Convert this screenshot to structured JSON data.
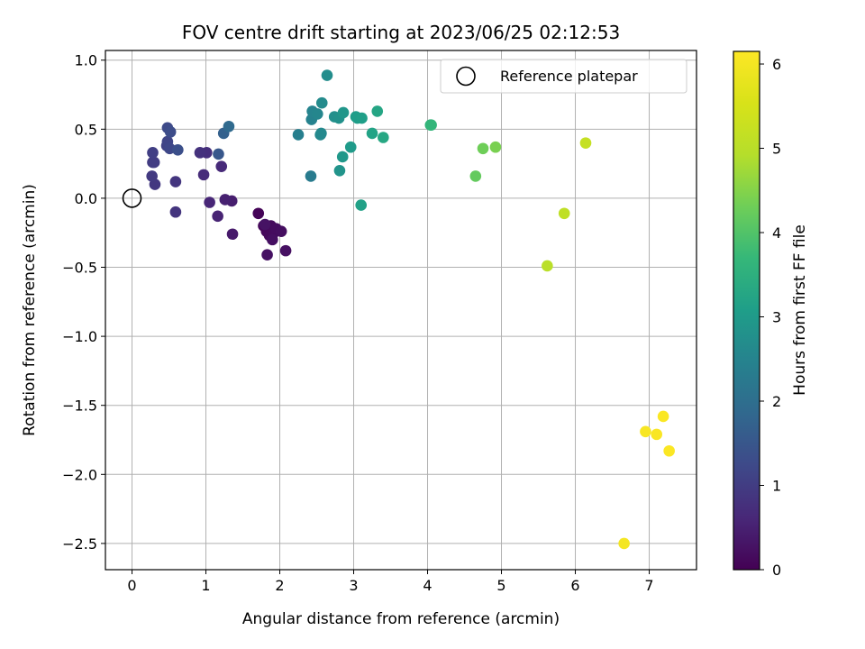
{
  "chart_data": {
    "type": "scatter",
    "title": "FOV centre drift starting at 2023/06/25 02:12:53",
    "xlabel": "Angular distance from reference (arcmin)",
    "ylabel": "Rotation from reference (arcmin)",
    "xlim": [
      -0.36,
      7.64
    ],
    "ylim": [
      -2.69,
      1.07
    ],
    "xticks": [
      0,
      1,
      2,
      3,
      4,
      5,
      6,
      7
    ],
    "xtick_labels": [
      "0",
      "1",
      "2",
      "3",
      "4",
      "5",
      "6",
      "7"
    ],
    "yticks": [
      1.0,
      0.5,
      0.0,
      -0.5,
      -1.0,
      -1.5,
      -2.0,
      -2.5
    ],
    "ytick_labels": [
      "1.0",
      "0.5",
      "0.0",
      "−0.5",
      "−1.0",
      "−1.5",
      "−2.0",
      "−2.5"
    ],
    "grid": true,
    "legend": {
      "placement": "top-right",
      "entries": [
        "Reference platepar"
      ]
    },
    "reference_point": {
      "x": 0.0,
      "y": 0.0
    },
    "colorbar": {
      "label": "Hours from first FF file",
      "range": [
        0,
        6.15
      ],
      "ticks": [
        0,
        1,
        2,
        3,
        4,
        5,
        6
      ],
      "tick_labels": [
        "0",
        "1",
        "2",
        "3",
        "4",
        "5",
        "6"
      ],
      "colormap": "viridis"
    },
    "points": [
      {
        "x": 1.71,
        "y": -0.11,
        "c": 0.05
      },
      {
        "x": 1.78,
        "y": -0.2,
        "c": 0.08
      },
      {
        "x": 1.82,
        "y": -0.24,
        "c": 0.1
      },
      {
        "x": 1.86,
        "y": -0.27,
        "c": 0.12
      },
      {
        "x": 1.88,
        "y": -0.2,
        "c": 0.14
      },
      {
        "x": 1.92,
        "y": -0.25,
        "c": 0.16
      },
      {
        "x": 1.95,
        "y": -0.22,
        "c": 0.18
      },
      {
        "x": 2.02,
        "y": -0.24,
        "c": 0.2
      },
      {
        "x": 1.9,
        "y": -0.3,
        "c": 0.22
      },
      {
        "x": 2.08,
        "y": -0.38,
        "c": 0.24
      },
      {
        "x": 1.83,
        "y": -0.41,
        "c": 0.26
      },
      {
        "x": 1.8,
        "y": -0.19,
        "c": 0.28
      },
      {
        "x": 1.36,
        "y": -0.26,
        "c": 0.4
      },
      {
        "x": 1.35,
        "y": -0.02,
        "c": 0.45
      },
      {
        "x": 1.26,
        "y": -0.01,
        "c": 0.5
      },
      {
        "x": 1.16,
        "y": -0.13,
        "c": 0.55
      },
      {
        "x": 1.05,
        "y": -0.03,
        "c": 0.6
      },
      {
        "x": 1.21,
        "y": 0.23,
        "c": 0.65
      },
      {
        "x": 0.97,
        "y": 0.17,
        "c": 0.7
      },
      {
        "x": 1.01,
        "y": 0.33,
        "c": 0.75
      },
      {
        "x": 0.92,
        "y": 0.33,
        "c": 0.8
      },
      {
        "x": 0.59,
        "y": -0.1,
        "c": 0.85
      },
      {
        "x": 0.59,
        "y": 0.12,
        "c": 0.88
      },
      {
        "x": 0.31,
        "y": 0.1,
        "c": 0.92
      },
      {
        "x": 0.27,
        "y": 0.16,
        "c": 0.95
      },
      {
        "x": 0.28,
        "y": 0.26,
        "c": 0.98
      },
      {
        "x": 0.3,
        "y": 0.26,
        "c": 1.0
      },
      {
        "x": 0.28,
        "y": 0.33,
        "c": 1.05
      },
      {
        "x": 0.47,
        "y": 0.38,
        "c": 1.1
      },
      {
        "x": 0.48,
        "y": 0.41,
        "c": 1.15
      },
      {
        "x": 0.51,
        "y": 0.36,
        "c": 1.2
      },
      {
        "x": 0.48,
        "y": 0.51,
        "c": 1.25
      },
      {
        "x": 0.52,
        "y": 0.48,
        "c": 1.3
      },
      {
        "x": 0.62,
        "y": 0.35,
        "c": 1.35
      },
      {
        "x": 1.17,
        "y": 0.32,
        "c": 1.5
      },
      {
        "x": 1.24,
        "y": 0.47,
        "c": 1.7
      },
      {
        "x": 1.31,
        "y": 0.52,
        "c": 1.9
      },
      {
        "x": 2.42,
        "y": 0.16,
        "c": 2.3
      },
      {
        "x": 2.25,
        "y": 0.46,
        "c": 2.4
      },
      {
        "x": 2.43,
        "y": 0.57,
        "c": 2.45
      },
      {
        "x": 2.44,
        "y": 0.63,
        "c": 2.5
      },
      {
        "x": 2.51,
        "y": 0.61,
        "c": 2.55
      },
      {
        "x": 2.55,
        "y": 0.46,
        "c": 2.6
      },
      {
        "x": 2.56,
        "y": 0.47,
        "c": 2.62
      },
      {
        "x": 2.57,
        "y": 0.69,
        "c": 2.65
      },
      {
        "x": 2.64,
        "y": 0.89,
        "c": 2.7
      },
      {
        "x": 2.74,
        "y": 0.59,
        "c": 2.75
      },
      {
        "x": 2.8,
        "y": 0.58,
        "c": 2.8
      },
      {
        "x": 2.81,
        "y": 0.2,
        "c": 2.85
      },
      {
        "x": 2.86,
        "y": 0.62,
        "c": 2.9
      },
      {
        "x": 2.85,
        "y": 0.3,
        "c": 2.95
      },
      {
        "x": 2.96,
        "y": 0.37,
        "c": 3.0
      },
      {
        "x": 3.03,
        "y": 0.59,
        "c": 3.05
      },
      {
        "x": 3.05,
        "y": 0.58,
        "c": 3.08
      },
      {
        "x": 3.11,
        "y": 0.58,
        "c": 3.1
      },
      {
        "x": 3.1,
        "y": -0.05,
        "c": 3.15
      },
      {
        "x": 3.25,
        "y": 0.47,
        "c": 3.2
      },
      {
        "x": 3.32,
        "y": 0.63,
        "c": 3.25
      },
      {
        "x": 3.4,
        "y": 0.44,
        "c": 3.3
      },
      {
        "x": 4.04,
        "y": 0.53,
        "c": 3.6
      },
      {
        "x": 4.05,
        "y": 0.53,
        "c": 3.65
      },
      {
        "x": 4.65,
        "y": 0.16,
        "c": 4.2
      },
      {
        "x": 4.75,
        "y": 0.36,
        "c": 4.3
      },
      {
        "x": 4.92,
        "y": 0.37,
        "c": 4.4
      },
      {
        "x": 5.62,
        "y": -0.49,
        "c": 5.0
      },
      {
        "x": 5.85,
        "y": -0.11,
        "c": 5.1
      },
      {
        "x": 6.14,
        "y": 0.4,
        "c": 5.2
      },
      {
        "x": 6.66,
        "y": -2.5,
        "c": 6.0
      },
      {
        "x": 6.95,
        "y": -1.69,
        "c": 6.05
      },
      {
        "x": 7.1,
        "y": -1.71,
        "c": 6.08
      },
      {
        "x": 7.19,
        "y": -1.58,
        "c": 6.1
      },
      {
        "x": 7.27,
        "y": -1.83,
        "c": 6.12
      }
    ]
  }
}
